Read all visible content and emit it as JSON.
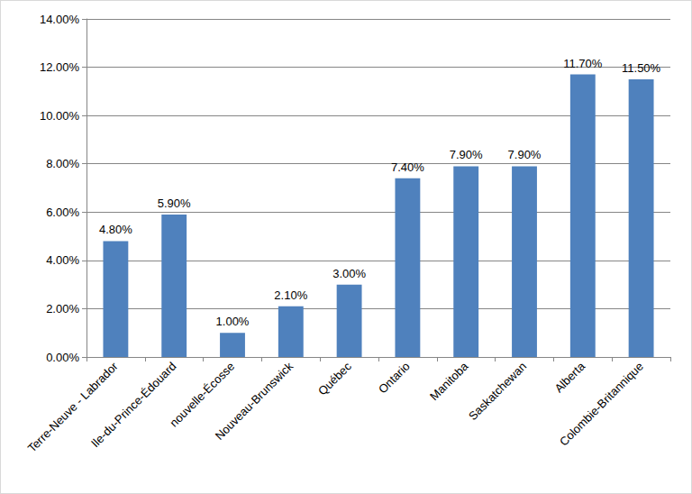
{
  "chart_data": {
    "type": "bar",
    "categories": [
      "Terre-Neuve - Labrador",
      "Ile-du-Prince-Édouard",
      "nouvelle-Écosse",
      "Nouveau-Brunswick",
      "Québec",
      "Ontario",
      "Manitoba",
      "Saskatchewan",
      "Alberta",
      "Colombie-Britannique"
    ],
    "values": [
      4.8,
      5.9,
      1.0,
      2.1,
      3.0,
      7.4,
      7.9,
      7.9,
      11.7,
      11.5
    ],
    "value_labels": [
      "4.80%",
      "5.90%",
      "1.00%",
      "2.10%",
      "3.00%",
      "7.40%",
      "7.90%",
      "7.90%",
      "11.70%",
      "11.50%"
    ],
    "color": "#4f81bd",
    "ylim": [
      0,
      14
    ],
    "yticks": [
      {
        "value": 0,
        "label": "0.00%"
      },
      {
        "value": 2,
        "label": "2.00%"
      },
      {
        "value": 4,
        "label": "4.00%"
      },
      {
        "value": 6,
        "label": "6.00%"
      },
      {
        "value": 8,
        "label": "8.00%"
      },
      {
        "value": 10,
        "label": "10.00%"
      },
      {
        "value": 12,
        "label": "12.00%"
      },
      {
        "value": 14,
        "label": "14.00%"
      }
    ],
    "grid": true,
    "data_labels": true
  }
}
